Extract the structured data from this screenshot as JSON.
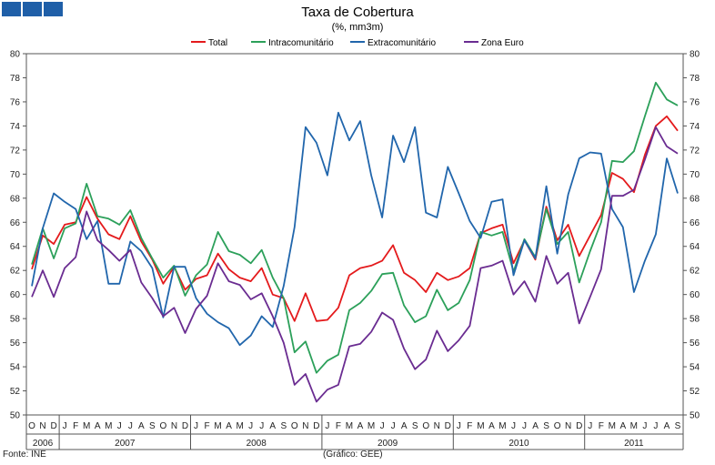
{
  "logo": {
    "blocks": 3,
    "color": "#1f5fa8"
  },
  "footer": {
    "source": "Fonte: INE",
    "credit": "(Gráfico: GEE)"
  },
  "chart_data": {
    "type": "line",
    "title": "Taxa de Cobertura",
    "subtitle": "(%, mm3m)",
    "ylim": [
      50,
      80
    ],
    "yticks": [
      50,
      52,
      54,
      56,
      58,
      60,
      62,
      64,
      66,
      68,
      70,
      72,
      74,
      76,
      78,
      80
    ],
    "grid": false,
    "legend_position": "top",
    "x_months": [
      "O",
      "N",
      "D",
      "J",
      "F",
      "M",
      "A",
      "M",
      "J",
      "J",
      "A",
      "S",
      "O",
      "N",
      "D",
      "J",
      "F",
      "M",
      "A",
      "M",
      "J",
      "J",
      "A",
      "S",
      "O",
      "N",
      "D",
      "J",
      "F",
      "M",
      "A",
      "M",
      "J",
      "J",
      "A",
      "S",
      "O",
      "N",
      "D",
      "J",
      "F",
      "M",
      "A",
      "M",
      "J",
      "J",
      "A",
      "S",
      "O",
      "N",
      "D",
      "J",
      "F",
      "M",
      "A",
      "M",
      "J",
      "J",
      "A",
      "S"
    ],
    "x_years": [
      {
        "label": "2006",
        "start": 0,
        "count": 3
      },
      {
        "label": "2007",
        "start": 3,
        "count": 12
      },
      {
        "label": "2008",
        "start": 15,
        "count": 12
      },
      {
        "label": "2009",
        "start": 27,
        "count": 12
      },
      {
        "label": "2010",
        "start": 39,
        "count": 12
      },
      {
        "label": "2011",
        "start": 51,
        "count": 9
      }
    ],
    "series": [
      {
        "name": "Total",
        "color": "#e41a1c",
        "values": [
          62.1,
          64.9,
          64.2,
          65.8,
          66.0,
          68.1,
          66.3,
          65.0,
          64.6,
          66.5,
          64.4,
          62.9,
          60.9,
          62.3,
          60.4,
          61.3,
          61.6,
          63.4,
          62.1,
          61.4,
          61.1,
          62.2,
          60.0,
          59.7,
          57.8,
          60.1,
          57.8,
          57.9,
          58.9,
          61.6,
          62.2,
          62.4,
          62.8,
          64.1,
          61.8,
          61.2,
          60.2,
          61.8,
          61.2,
          61.5,
          62.2,
          65.1,
          65.5,
          65.8,
          62.6,
          64.5,
          62.9,
          67.3,
          64.5,
          65.8,
          63.2,
          64.9,
          66.6,
          70.1,
          69.6,
          68.5,
          71.6,
          74.0,
          74.8,
          73.6
        ]
      },
      {
        "name": "Intracomunitário",
        "color": "#2ca05a",
        "values": [
          62.5,
          65.5,
          63.0,
          65.5,
          65.9,
          69.2,
          66.5,
          66.3,
          65.8,
          67.0,
          64.7,
          63.0,
          61.4,
          62.4,
          59.9,
          61.6,
          62.5,
          65.2,
          63.6,
          63.3,
          62.6,
          63.7,
          61.4,
          59.7,
          55.2,
          56.1,
          53.5,
          54.5,
          55.0,
          58.7,
          59.3,
          60.3,
          61.7,
          61.8,
          59.1,
          57.7,
          58.2,
          60.4,
          58.7,
          59.3,
          61.2,
          65.2,
          64.9,
          65.2,
          61.9,
          64.6,
          63.1,
          67.1,
          64.2,
          65.2,
          61.0,
          63.6,
          66.0,
          71.1,
          71.0,
          71.9,
          74.8,
          77.6,
          76.2,
          75.7
        ]
      },
      {
        "name": "Extracomunitário",
        "color": "#2166ac",
        "values": [
          60.7,
          65.5,
          68.4,
          67.7,
          67.1,
          64.6,
          66.1,
          60.9,
          60.9,
          64.4,
          63.6,
          62.2,
          58.1,
          62.3,
          62.3,
          59.7,
          58.4,
          57.7,
          57.2,
          55.8,
          56.6,
          58.2,
          57.3,
          60.7,
          65.6,
          73.9,
          72.6,
          69.9,
          75.1,
          72.8,
          74.4,
          69.9,
          66.4,
          73.2,
          71.0,
          73.9,
          66.8,
          66.4,
          70.6,
          68.4,
          66.1,
          64.7,
          67.7,
          67.9,
          61.6,
          64.5,
          63.0,
          69.0,
          63.4,
          68.3,
          71.3,
          71.8,
          71.7,
          67.1,
          65.6,
          60.2,
          62.8,
          65.0,
          71.3,
          68.4
        ]
      },
      {
        "name": "Zona Euro",
        "color": "#6a2c91",
        "values": [
          59.8,
          62.0,
          59.8,
          62.2,
          63.1,
          66.9,
          64.5,
          63.7,
          62.8,
          63.7,
          61.0,
          59.7,
          58.2,
          58.9,
          56.8,
          58.8,
          59.9,
          62.6,
          61.1,
          60.8,
          59.6,
          60.1,
          58.2,
          56.0,
          52.5,
          53.4,
          51.1,
          52.1,
          52.5,
          55.7,
          55.9,
          56.9,
          58.5,
          57.9,
          55.5,
          53.8,
          54.6,
          57.0,
          55.3,
          56.2,
          57.4,
          62.2,
          62.4,
          62.8,
          60.0,
          61.1,
          59.4,
          63.2,
          60.9,
          61.8,
          57.6,
          59.8,
          62.1,
          68.2,
          68.2,
          68.7,
          71.2,
          73.9,
          72.3,
          71.7
        ]
      }
    ]
  }
}
